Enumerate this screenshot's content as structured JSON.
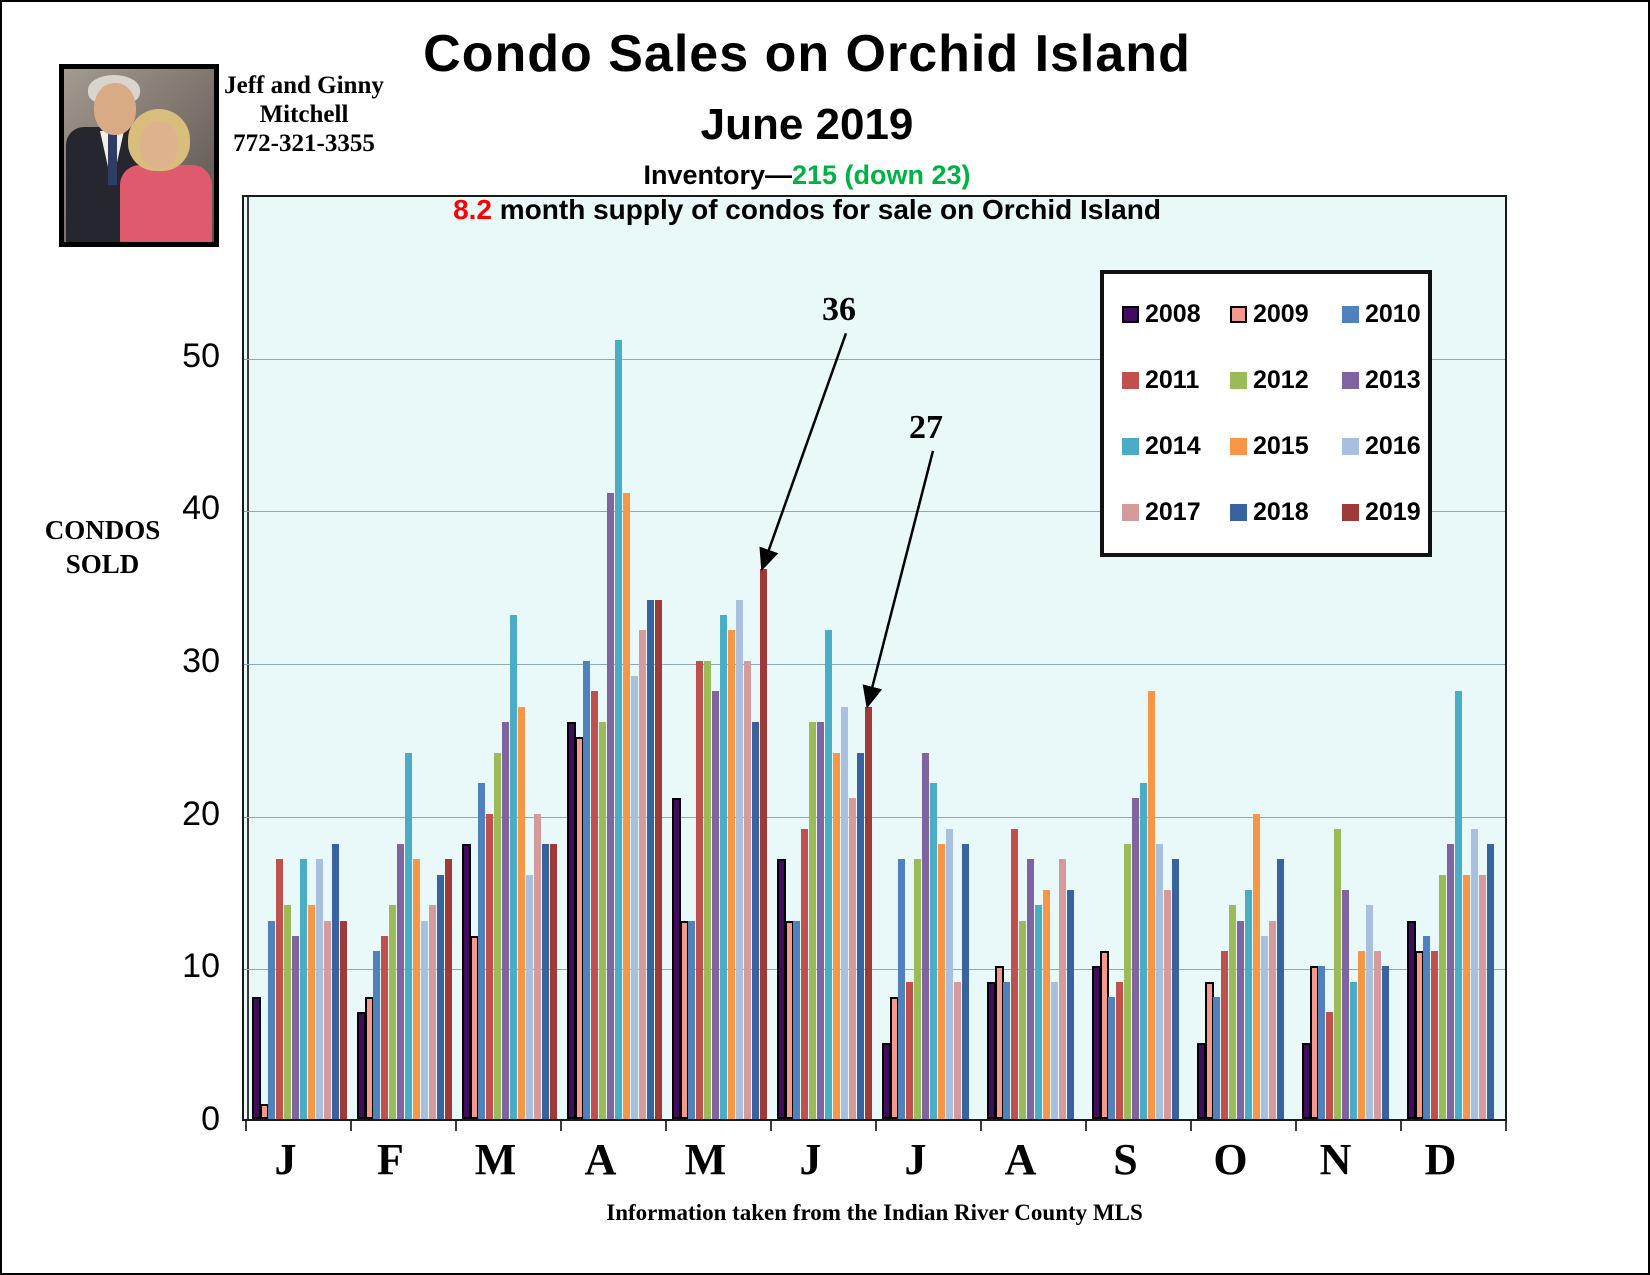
{
  "branding": {
    "line1": "Jeff and Ginny",
    "line2": "Mitchell",
    "phone": "772-321-3355"
  },
  "header": {
    "title": "Condo Sales on Orchid Island",
    "subtitle": "June 2019",
    "inventory_prefix": "Inventory—",
    "inventory_value": "215 (down 23)",
    "inventory_color": "#00b244",
    "supply_value": "8.2",
    "supply_text": " month supply of condos for sale on Orchid Island",
    "supply_color": "#ff0000"
  },
  "chart_data": {
    "type": "bar",
    "title": "Condo Sales on Orchid Island",
    "subtitle": "June 2019",
    "ylabel": "CONDOS SOLD",
    "ylabel_lines": [
      "CONDOS",
      "SOLD"
    ],
    "categories": [
      "J",
      "F",
      "M",
      "A",
      "M",
      "J",
      "J",
      "A",
      "S",
      "O",
      "N",
      "D"
    ],
    "ylim": [
      0,
      55
    ],
    "yticks": [
      0,
      10,
      20,
      30,
      40,
      50
    ],
    "grid": true,
    "plot_background": "#e9f8f8",
    "legend_position": "top-right",
    "series": [
      {
        "name": "2008",
        "color": "#420c5e",
        "outline": "#000000",
        "values": [
          8,
          7,
          18,
          26,
          21,
          17,
          5,
          9,
          10,
          5,
          5,
          13
        ]
      },
      {
        "name": "2009",
        "color": "#f5998c",
        "outline": "#000000",
        "values": [
          1,
          8,
          12,
          25,
          13,
          13,
          8,
          10,
          11,
          9,
          10,
          11
        ]
      },
      {
        "name": "2010",
        "color": "#4f81bd",
        "values": [
          13,
          11,
          22,
          30,
          13,
          13,
          17,
          9,
          8,
          8,
          10,
          12
        ]
      },
      {
        "name": "2011",
        "color": "#c0504d",
        "values": [
          17,
          12,
          20,
          28,
          30,
          19,
          9,
          19,
          9,
          11,
          7,
          11
        ]
      },
      {
        "name": "2012",
        "color": "#9bbb59",
        "values": [
          14,
          14,
          24,
          26,
          30,
          26,
          17,
          13,
          18,
          14,
          19,
          16
        ]
      },
      {
        "name": "2013",
        "color": "#8064a2",
        "values": [
          12,
          18,
          26,
          41,
          28,
          26,
          24,
          17,
          21,
          13,
          15,
          18
        ]
      },
      {
        "name": "2014",
        "color": "#4bacc6",
        "values": [
          17,
          24,
          33,
          51,
          33,
          32,
          22,
          14,
          22,
          15,
          9,
          28
        ]
      },
      {
        "name": "2015",
        "color": "#f79646",
        "values": [
          14,
          17,
          27,
          41,
          32,
          24,
          18,
          15,
          28,
          20,
          11,
          16
        ]
      },
      {
        "name": "2016",
        "color": "#a9bfde",
        "values": [
          17,
          13,
          16,
          29,
          34,
          27,
          19,
          9,
          18,
          12,
          14,
          19
        ]
      },
      {
        "name": "2017",
        "color": "#d49a9c",
        "values": [
          13,
          14,
          20,
          32,
          30,
          21,
          9,
          17,
          15,
          13,
          11,
          16
        ]
      },
      {
        "name": "2018",
        "color": "#38639f",
        "values": [
          18,
          16,
          18,
          34,
          26,
          24,
          18,
          15,
          17,
          17,
          10,
          18
        ]
      },
      {
        "name": "2019",
        "color": "#9e3b38",
        "values": [
          13,
          17,
          18,
          34,
          36,
          27,
          null,
          null,
          null,
          null,
          null,
          null
        ]
      }
    ],
    "annotations": [
      {
        "label": "36",
        "series": "2019",
        "category_index": 4
      },
      {
        "label": "27",
        "series": "2019",
        "category_index": 5
      }
    ]
  },
  "footer": {
    "source": "Information taken from the Indian River County MLS"
  }
}
